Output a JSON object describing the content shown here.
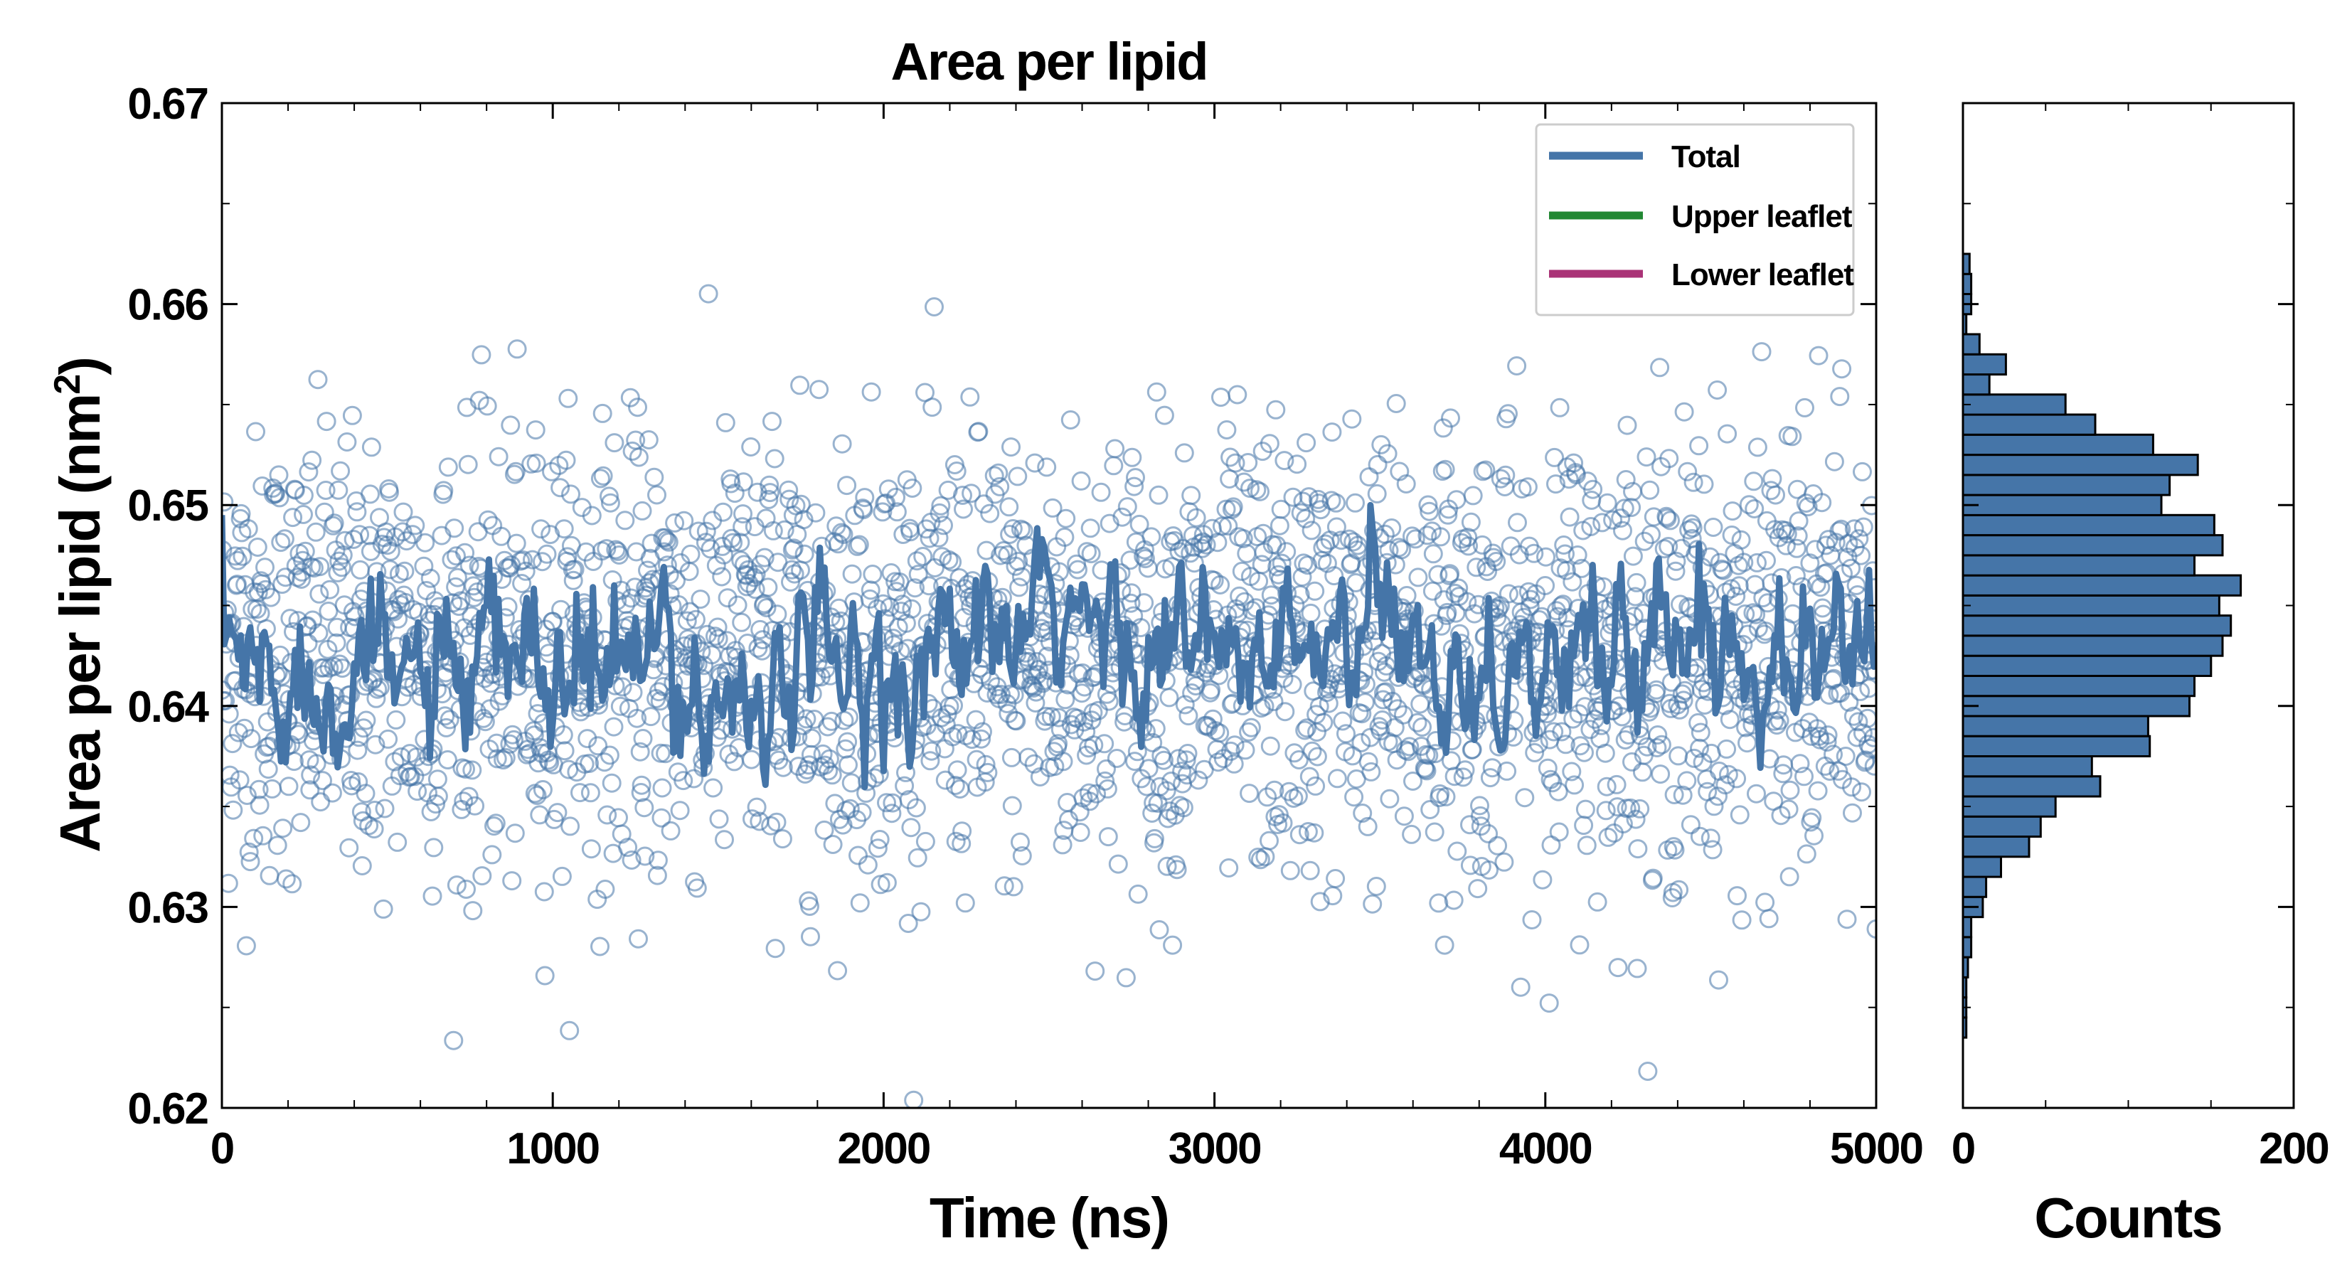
{
  "colors": {
    "total": "#4575a8",
    "upper": "#228833",
    "lower": "#aa3377",
    "hist_edge": "#000000",
    "axis": "#000000"
  },
  "chart_data": [
    {
      "type": "scatter",
      "title": "Area per lipid",
      "xlabel": "Time (ns)",
      "ylabel": "Area per lipid (nm",
      "ylabel_superscript": "2",
      "ylabel_close": ")",
      "xlim": [
        0,
        5000
      ],
      "ylim": [
        0.62,
        0.67
      ],
      "xticks": [
        0,
        1000,
        2000,
        3000,
        4000,
        5000
      ],
      "xtick_labels": [
        "0",
        "1000",
        "2000",
        "3000",
        "4000",
        "5000"
      ],
      "yticks": [
        0.62,
        0.63,
        0.64,
        0.65,
        0.66,
        0.67
      ],
      "ytick_labels": [
        "0.62",
        "0.63",
        "0.64",
        "0.65",
        "0.66",
        "0.67"
      ],
      "legend_position": "top-right",
      "legend": [
        {
          "label": "Total",
          "color_key": "total"
        },
        {
          "label": "Upper leaflet",
          "color_key": "upper"
        },
        {
          "label": "Lower leaflet",
          "color_key": "lower"
        }
      ],
      "scatter_points": {
        "n": 2500,
        "x_range": [
          0,
          5000
        ],
        "mean": 0.6425,
        "std": 0.0055,
        "marker": "open circle",
        "color_key": "total"
      },
      "series": [
        {
          "name": "Total",
          "color_key": "total",
          "x": [
            0,
            100,
            200,
            300,
            400,
            500,
            600,
            700,
            800,
            900,
            1000,
            1100,
            1200,
            1300,
            1400,
            1500,
            1600,
            1700,
            1800,
            1900,
            2000,
            2100,
            2200,
            2300,
            2400,
            2500,
            2600,
            2700,
            2800,
            2900,
            3000,
            3100,
            3200,
            3300,
            3400,
            3500,
            3600,
            3700,
            3800,
            3900,
            4000,
            4100,
            4200,
            4300,
            4400,
            4500,
            4600,
            4700,
            4800,
            4900,
            5000
          ],
          "y": [
            0.6435,
            0.642,
            0.6412,
            0.6408,
            0.643,
            0.6405,
            0.6425,
            0.6395,
            0.6418,
            0.6428,
            0.641,
            0.6418,
            0.6415,
            0.6425,
            0.6412,
            0.6402,
            0.6418,
            0.6395,
            0.6425,
            0.6415,
            0.642,
            0.6418,
            0.6428,
            0.6432,
            0.6425,
            0.6445,
            0.6438,
            0.6442,
            0.643,
            0.6428,
            0.6425,
            0.6418,
            0.6428,
            0.6422,
            0.6432,
            0.6438,
            0.6428,
            0.6425,
            0.6418,
            0.642,
            0.6415,
            0.6425,
            0.643,
            0.6435,
            0.644,
            0.6435,
            0.643,
            0.6438,
            0.643,
            0.6425,
            0.6435
          ]
        }
      ]
    },
    {
      "type": "bar",
      "orientation": "horizontal",
      "xlabel": "Counts",
      "xlim": [
        0,
        200
      ],
      "xticks": [
        0,
        200
      ],
      "xtick_labels": [
        "0",
        "200"
      ],
      "ylim": [
        0.62,
        0.67
      ],
      "bins_y_start": [
        0.6235,
        0.6245,
        0.6255,
        0.6265,
        0.6275,
        0.6285,
        0.6295,
        0.6305,
        0.6315,
        0.6325,
        0.6335,
        0.6345,
        0.6355,
        0.6365,
        0.6375,
        0.6385,
        0.6395,
        0.6405,
        0.6415,
        0.6425,
        0.6435,
        0.6445,
        0.6455,
        0.6465,
        0.6475,
        0.6485,
        0.6495,
        0.6505,
        0.6515,
        0.6525,
        0.6535,
        0.6545,
        0.6555,
        0.6565,
        0.6575,
        0.6585,
        0.6595,
        0.6605,
        0.6615
      ],
      "bin_width": 0.001,
      "counts": [
        2,
        2,
        2,
        3,
        5,
        5,
        12,
        14,
        23,
        40,
        47,
        56,
        83,
        78,
        113,
        112,
        137,
        140,
        150,
        157,
        162,
        155,
        168,
        140,
        157,
        152,
        120,
        125,
        142,
        115,
        80,
        62,
        16,
        26,
        10,
        2,
        5,
        5,
        4
      ],
      "color_key": "total"
    }
  ]
}
